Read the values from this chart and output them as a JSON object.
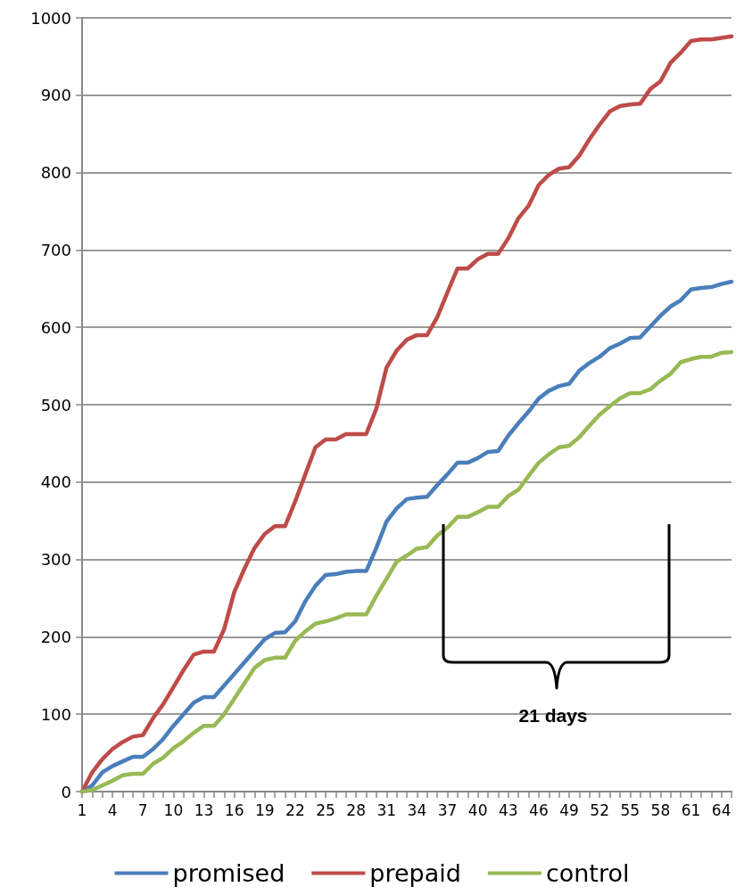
{
  "chart_data": {
    "type": "line",
    "categories": [
      "1",
      null,
      null,
      "4",
      null,
      null,
      "7",
      null,
      null,
      "10",
      null,
      null,
      "13",
      null,
      null,
      "16",
      null,
      null,
      "19",
      null,
      null,
      "22",
      null,
      null,
      "25",
      null,
      null,
      "28",
      null,
      null,
      "31",
      null,
      null,
      "34",
      null,
      null,
      "37",
      null,
      null,
      "40",
      null,
      null,
      "43",
      null,
      null,
      "46",
      null,
      null,
      "49",
      null,
      null,
      "52",
      null,
      null,
      "55",
      null,
      null,
      "58",
      null,
      null,
      "61",
      null,
      null,
      "64",
      null
    ],
    "series": [
      {
        "name": "promised",
        "color": "#4a7ebb",
        "values": [
          0,
          8,
          25,
          33,
          39,
          45,
          45,
          55,
          68,
          85,
          100,
          115,
          122,
          122,
          137,
          152,
          167,
          182,
          197,
          205,
          206,
          220,
          246,
          266,
          280,
          281,
          284,
          285,
          285,
          315,
          349,
          366,
          378,
          380,
          381,
          396,
          410,
          425,
          425,
          431,
          439,
          440,
          460,
          476,
          491,
          508,
          518,
          524,
          527,
          544,
          554,
          562,
          573,
          579,
          586,
          587,
          601,
          615,
          627,
          635,
          649,
          651,
          652,
          656,
          659
        ]
      },
      {
        "name": "prepaid",
        "color": "#be4b48",
        "values": [
          0,
          25,
          42,
          55,
          64,
          71,
          73,
          95,
          113,
          135,
          157,
          177,
          181,
          181,
          210,
          258,
          288,
          315,
          333,
          343,
          343,
          375,
          410,
          445,
          455,
          455,
          462,
          462,
          462,
          495,
          548,
          570,
          584,
          590,
          590,
          613,
          645,
          676,
          676,
          688,
          695,
          695,
          715,
          741,
          757,
          784,
          797,
          805,
          807,
          822,
          843,
          862,
          879,
          886,
          888,
          889,
          908,
          918,
          942,
          955,
          970,
          972,
          972,
          974,
          976
        ]
      },
      {
        "name": "control",
        "color": "#98b954",
        "values": [
          0,
          2,
          8,
          14,
          21,
          23,
          23,
          36,
          44,
          56,
          65,
          76,
          85,
          85,
          100,
          120,
          140,
          160,
          170,
          173,
          173,
          195,
          207,
          217,
          220,
          224,
          229,
          229,
          229,
          253,
          275,
          297,
          305,
          314,
          316,
          331,
          341,
          355,
          355,
          361,
          368,
          368,
          382,
          390,
          408,
          425,
          436,
          445,
          447,
          458,
          473,
          487,
          498,
          508,
          515,
          515,
          520,
          531,
          540,
          555,
          559,
          562,
          562,
          567,
          568
        ]
      }
    ],
    "ylim": [
      0,
      1000
    ],
    "yticks": [
      0,
      100,
      200,
      300,
      400,
      500,
      600,
      700,
      800,
      900,
      1000
    ],
    "grid": "y",
    "legend": "bottom",
    "marker": "none",
    "line_style": "solid",
    "annotations": [
      "21 days"
    ]
  }
}
